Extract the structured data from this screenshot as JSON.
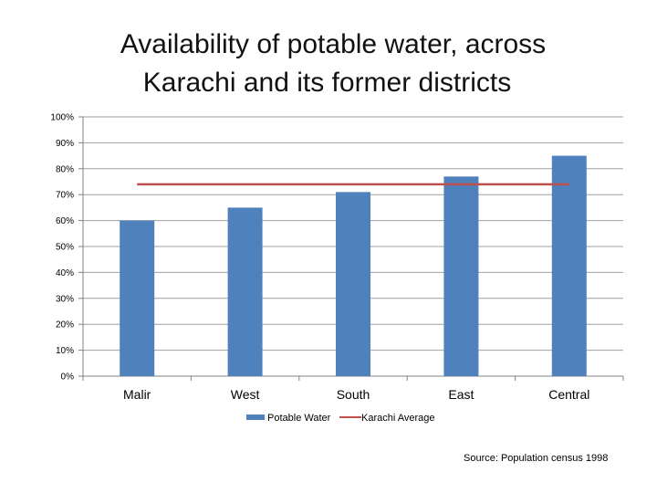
{
  "title_line1": "Availability of potable water, across",
  "title_line2": "Karachi and its former districts",
  "source": "Source: Population census 1998",
  "colors": {
    "bar": "#4F81BD",
    "average_line": "#C0504D",
    "grid": "#A0A0A0",
    "axis": "#808080"
  },
  "chart_data": {
    "type": "bar",
    "categories": [
      "Malir",
      "West",
      "South",
      "East",
      "Central"
    ],
    "series": [
      {
        "name": "Potable Water",
        "type": "bar",
        "values": [
          60,
          65,
          71,
          77,
          85
        ]
      },
      {
        "name": "Karachi Average",
        "type": "line",
        "values": [
          74,
          74,
          74,
          74,
          74
        ]
      }
    ],
    "ylim": [
      0,
      100
    ],
    "yticks": [
      "0%",
      "10%",
      "20%",
      "30%",
      "40%",
      "50%",
      "60%",
      "70%",
      "80%",
      "90%",
      "100%"
    ],
    "grid": true,
    "legend": "bottom"
  }
}
